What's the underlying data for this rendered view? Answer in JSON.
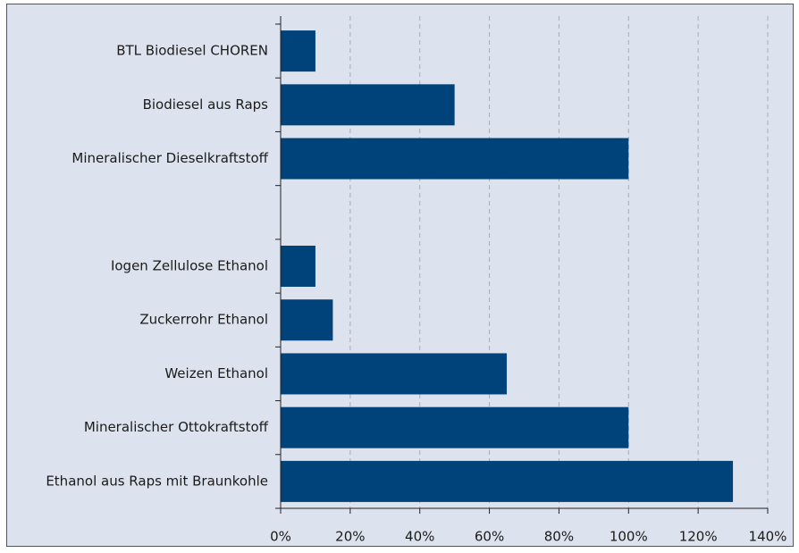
{
  "chart_data": {
    "type": "bar",
    "orientation": "horizontal",
    "categories": [
      "BTL Biodiesel CHOREN",
      "Biodiesel aus Raps",
      "Mineralischer Dieselkraftstoff",
      null,
      "Iogen Zellulose Ethanol",
      "Zuckerrohr Ethanol",
      "Weizen Ethanol",
      "Mineralischer Ottokraftstoff",
      "Ethanol aus Raps mit Braunkohle"
    ],
    "values": [
      10,
      50,
      100,
      null,
      10,
      15,
      65,
      100,
      130
    ],
    "color": "#00427a",
    "xlim": [
      0,
      140
    ],
    "xticks": [
      {
        "value": 0,
        "label": "0%"
      },
      {
        "value": 20,
        "label": "20%"
      },
      {
        "value": 40,
        "label": "40%"
      },
      {
        "value": 60,
        "label": "60%"
      },
      {
        "value": 80,
        "label": "80%"
      },
      {
        "value": 100,
        "label": "100%"
      },
      {
        "value": 120,
        "label": "120%"
      },
      {
        "value": 140,
        "label": "140%"
      }
    ],
    "grid": true
  }
}
